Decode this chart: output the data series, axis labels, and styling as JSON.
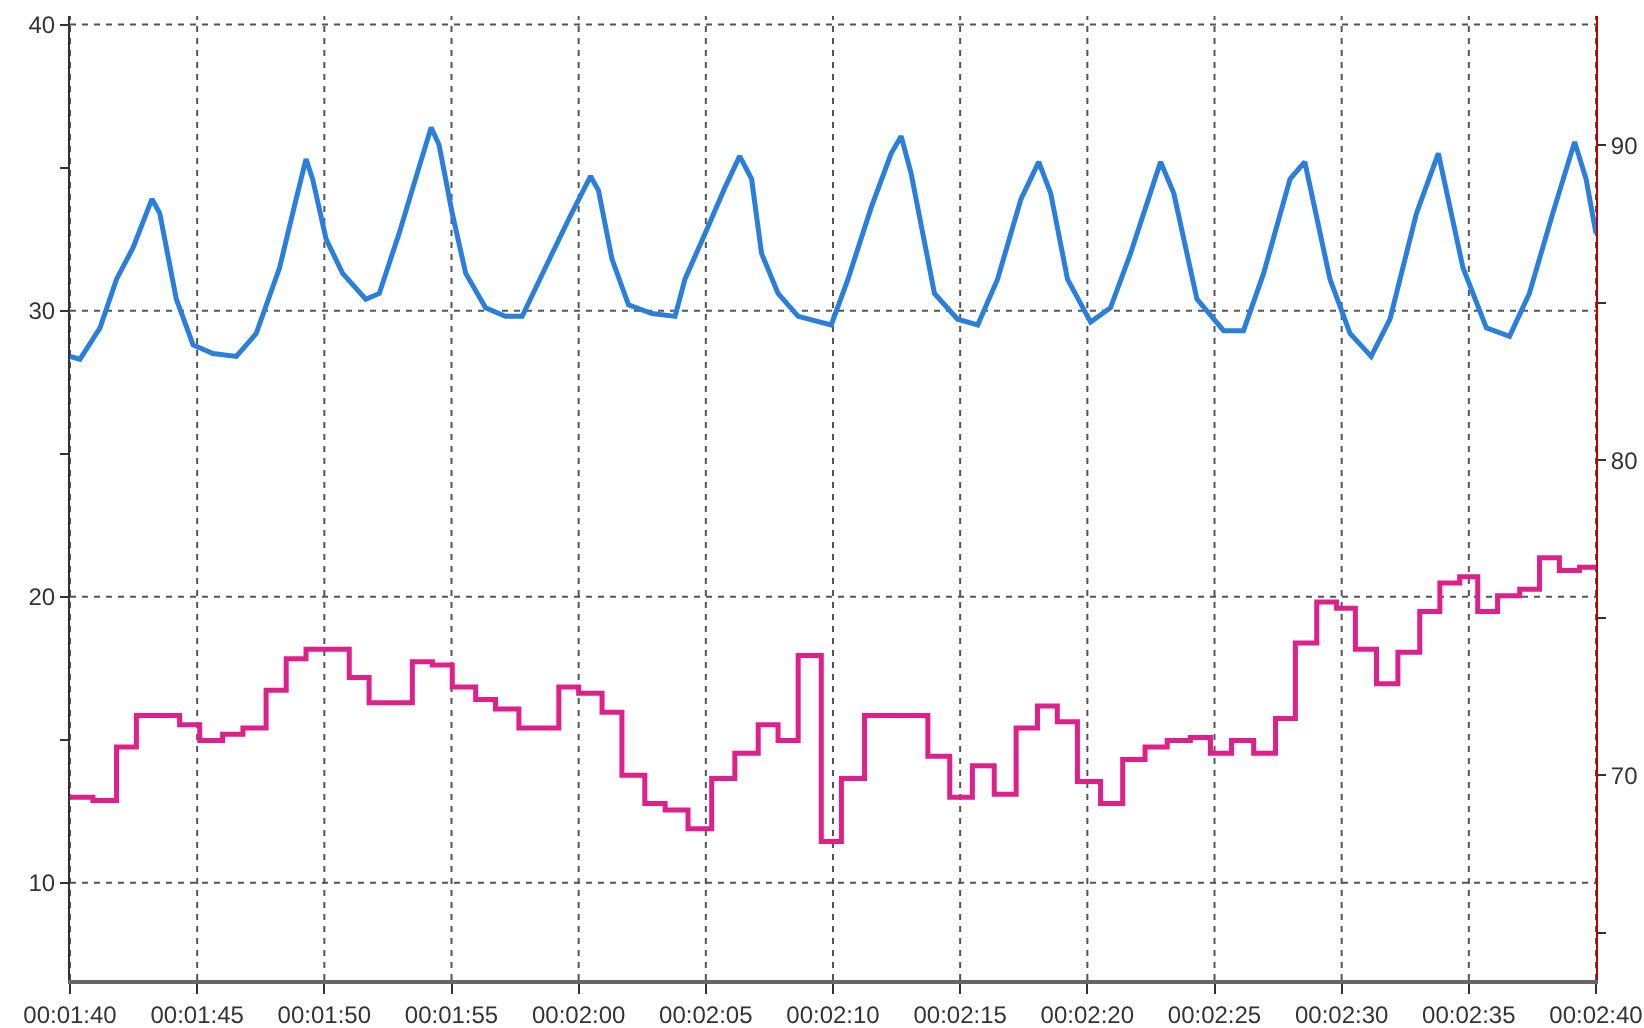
{
  "chart_data": {
    "type": "line",
    "grid": true,
    "marker": "none",
    "line_style": "solid",
    "xlim": [
      100,
      160
    ],
    "xticks": [
      {
        "value": 100,
        "label": "00:01:40"
      },
      {
        "value": 105,
        "label": "00:01:45"
      },
      {
        "value": 110,
        "label": "00:01:50"
      },
      {
        "value": 115,
        "label": "00:01:55"
      },
      {
        "value": 120,
        "label": "00:02:00"
      },
      {
        "value": 125,
        "label": "00:02:05"
      },
      {
        "value": 130,
        "label": "00:02:10"
      },
      {
        "value": 135,
        "label": "00:02:15"
      },
      {
        "value": 140,
        "label": "00:02:20"
      },
      {
        "value": 145,
        "label": "00:02:25"
      },
      {
        "value": 150,
        "label": "00:02:30"
      },
      {
        "value": 155,
        "label": "00:02:35"
      },
      {
        "value": 160,
        "label": "00:02:40"
      }
    ],
    "ylim": [
      6.6,
      40.3
    ],
    "yticks": [
      10,
      {
        "value": 15,
        "label": null
      },
      20,
      {
        "value": 25,
        "label": null
      },
      30,
      {
        "value": 35,
        "label": null
      },
      40
    ],
    "y2lim": [
      63.5,
      94.1
    ],
    "y2ticks": [
      {
        "value": 65,
        "label": null
      },
      70,
      {
        "value": 75,
        "label": null
      },
      80,
      {
        "value": 85,
        "label": null
      },
      90
    ],
    "series": [
      {
        "type": "line",
        "color": "#2a7fdc",
        "x": [
          100,
          100.39,
          101.18,
          101.83,
          102.48,
          103.22,
          103.53,
          104.18,
          104.84,
          105.62,
          106.54,
          107.32,
          108.24,
          108.89,
          109.28,
          109.54,
          110.07,
          110.72,
          111.63,
          112.16,
          112.94,
          113.72,
          114.2,
          114.51,
          115.03,
          115.56,
          116.34,
          117.12,
          117.78,
          118.69,
          119.61,
          120.47,
          120.78,
          121.31,
          121.96,
          122.88,
          123.79,
          124.18,
          124.97,
          125.75,
          126.33,
          126.8,
          127.19,
          127.84,
          128.63,
          129.93,
          130.59,
          131.5,
          132.29,
          132.68,
          133.07,
          133.99,
          134.9,
          135.69,
          136.47,
          137.39,
          138.09,
          138.56,
          139.22,
          140.13,
          140.91,
          141.7,
          142.88,
          143.4,
          144.31,
          145.36,
          146.14,
          146.93,
          147.97,
          148.55,
          149.54,
          150.33,
          151.16,
          151.9,
          152.94,
          153.8,
          154.77,
          155.69,
          156.6,
          157.38,
          158.3,
          159.16,
          159.61,
          160
        ],
        "values": [
          28.4,
          28.3,
          29.4,
          31.1,
          32.2,
          33.9,
          33.4,
          30.4,
          28.8,
          28.5,
          28.4,
          29.2,
          31.5,
          33.9,
          35.3,
          34.6,
          32.5,
          31.3,
          30.4,
          30.6,
          32.7,
          35.0,
          36.4,
          35.8,
          33.4,
          31.3,
          30.1,
          29.8,
          29.8,
          31.5,
          33.2,
          34.7,
          34.2,
          31.8,
          30.2,
          29.9,
          29.8,
          31.1,
          32.7,
          34.3,
          35.4,
          34.6,
          32.0,
          30.6,
          29.8,
          29.5,
          31.1,
          33.6,
          35.5,
          36.1,
          34.8,
          30.6,
          29.7,
          29.5,
          31.1,
          33.9,
          35.2,
          34.1,
          31.1,
          29.6,
          30.1,
          32.0,
          35.2,
          34.1,
          30.4,
          29.3,
          29.3,
          31.3,
          34.6,
          35.2,
          31.1,
          29.2,
          28.4,
          29.7,
          33.4,
          35.5,
          31.5,
          29.4,
          29.1,
          30.6,
          33.4,
          35.9,
          34.6,
          32.7
        ]
      },
      {
        "type": "step",
        "axis": "y2",
        "color": "#e0208a",
        "x": [
          100,
          100.9,
          101.83,
          102.61,
          104.31,
          105.1,
          106.0,
          106.8,
          107.71,
          108.5,
          109.28,
          110.98,
          111.76,
          113.46,
          114.25,
          115.03,
          115.95,
          116.73,
          117.65,
          119.22,
          120.0,
          120.92,
          121.7,
          122.6,
          123.4,
          124.3,
          125.23,
          126.14,
          127.06,
          127.84,
          128.63,
          129.54,
          130.33,
          131.24,
          133.73,
          134.59,
          135.48,
          136.34,
          137.2,
          138.04,
          138.82,
          139.61,
          140.52,
          141.39,
          142.27,
          143.14,
          144.05,
          144.84,
          145.67,
          146.54,
          147.4,
          148.18,
          149.02,
          149.8,
          150.54,
          151.37,
          152.21,
          153.07,
          153.86,
          154.64,
          155.35,
          156.13,
          157.0,
          157.78,
          158.56,
          159.35,
          160
        ],
        "values": [
          69.3,
          69.2,
          70.9,
          71.9,
          71.6,
          71.1,
          71.3,
          71.5,
          72.7,
          73.7,
          74.0,
          73.1,
          72.3,
          73.6,
          73.5,
          72.8,
          72.4,
          72.1,
          71.5,
          72.8,
          72.6,
          72.0,
          70.0,
          69.1,
          68.9,
          68.3,
          69.9,
          70.7,
          71.6,
          71.1,
          73.8,
          67.9,
          69.9,
          71.9,
          70.6,
          69.3,
          70.3,
          69.4,
          71.5,
          72.2,
          71.7,
          69.8,
          69.1,
          70.5,
          70.9,
          71.1,
          71.2,
          70.7,
          71.1,
          70.7,
          71.8,
          74.2,
          75.5,
          75.3,
          74.0,
          72.9,
          73.9,
          75.2,
          76.1,
          76.3,
          75.2,
          75.7,
          75.9,
          76.9,
          76.5,
          76.6,
          76.6
        ]
      }
    ]
  }
}
